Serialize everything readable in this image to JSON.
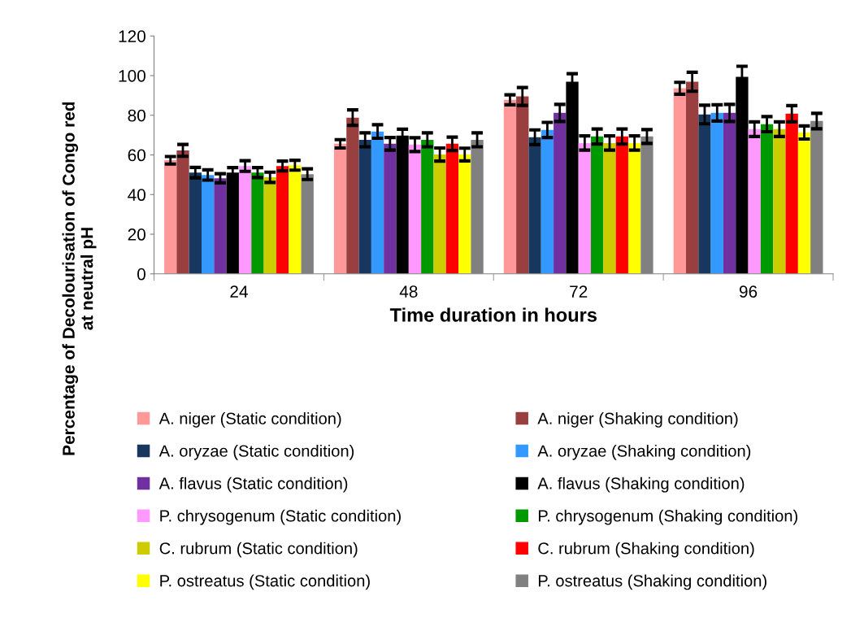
{
  "chart_data": {
    "type": "bar",
    "xlabel": "Time duration in hours",
    "ylabel": "Percentage of Decolourisation of Congo red\nat neutral pH",
    "categories": [
      "24",
      "48",
      "72",
      "96"
    ],
    "ylim": [
      0,
      120
    ],
    "yticks": [
      0,
      20,
      40,
      60,
      80,
      100,
      120
    ],
    "grid": false,
    "legend": "bottom",
    "series": [
      {
        "name": "A. niger (Static condition)",
        "color": "#ff9999",
        "values": [
          57.3,
          65.6,
          87.8,
          93.6
        ],
        "errors": [
          1.9,
          2.1,
          2.5,
          3.0
        ]
      },
      {
        "name": "A. niger (Shaking condition)",
        "color": "#993f3f",
        "values": [
          62.3,
          78.8,
          89.5,
          96.9
        ],
        "errors": [
          3.0,
          3.9,
          4.5,
          4.8
        ]
      },
      {
        "name": "A. oryzae (Static condition)",
        "color": "#17375e",
        "values": [
          51.1,
          67.6,
          68.9,
          80.4
        ],
        "errors": [
          2.6,
          3.5,
          3.7,
          4.7
        ]
      },
      {
        "name": "A. oryzae (Shaking condition)",
        "color": "#3399ff",
        "values": [
          49.9,
          71.8,
          72.6,
          81.2
        ],
        "errors": [
          2.6,
          3.4,
          3.8,
          4.1
        ]
      },
      {
        "name": "A. flavus (Static condition)",
        "color": "#7030a0",
        "values": [
          48.2,
          65.6,
          81.2,
          81.2
        ],
        "errors": [
          2.3,
          3.2,
          4.3,
          4.3
        ]
      },
      {
        "name": "A. flavus (Shaking condition)",
        "color": "#000000",
        "values": [
          51.1,
          69.7,
          96.9,
          99.4
        ],
        "errors": [
          2.5,
          3.3,
          4.1,
          5.3
        ]
      },
      {
        "name": "P. chrysogenum (Static condition)",
        "color": "#ff99ff",
        "values": [
          54.4,
          65.2,
          66.0,
          73.0
        ],
        "errors": [
          2.7,
          3.5,
          3.6,
          3.7
        ]
      },
      {
        "name": "P. chrysogenum (Shaking condition)",
        "color": "#009900",
        "values": [
          51.1,
          67.6,
          69.3,
          75.5
        ],
        "errors": [
          2.5,
          3.5,
          3.8,
          3.8
        ]
      },
      {
        "name": "C. rubrum (Static condition)",
        "color": "#cccc00",
        "values": [
          48.7,
          60.2,
          66.0,
          73.0
        ],
        "errors": [
          2.6,
          3.3,
          3.6,
          3.7
        ]
      },
      {
        "name": "C. rubrum (Shaking condition)",
        "color": "#ff0000",
        "values": [
          54.4,
          65.6,
          69.3,
          80.8
        ],
        "errors": [
          2.5,
          3.4,
          3.8,
          4.1
        ]
      },
      {
        "name": "P. ostreatus (Static condition)",
        "color": "#ffff00",
        "values": [
          54.8,
          60.2,
          66.0,
          71.3
        ],
        "errors": [
          2.5,
          3.2,
          3.6,
          3.3
        ]
      },
      {
        "name": "P. ostreatus (Shaking condition)",
        "color": "#808080",
        "values": [
          50.3,
          67.6,
          69.3,
          77.1
        ],
        "errors": [
          2.7,
          3.5,
          3.5,
          3.9
        ]
      }
    ]
  }
}
